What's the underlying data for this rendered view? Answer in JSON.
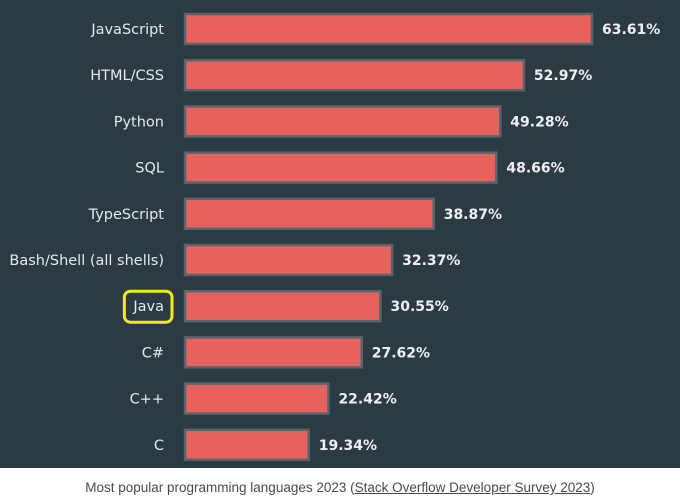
{
  "chart_data": {
    "type": "bar",
    "orientation": "horizontal",
    "categories": [
      "JavaScript",
      "HTML/CSS",
      "Python",
      "SQL",
      "TypeScript",
      "Bash/Shell (all shells)",
      "Java",
      "C#",
      "C++",
      "C"
    ],
    "values": [
      63.61,
      52.97,
      49.28,
      48.66,
      38.87,
      32.37,
      30.55,
      27.62,
      22.42,
      19.34
    ],
    "value_labels": [
      "63.61%",
      "52.97%",
      "49.28%",
      "48.66%",
      "38.87%",
      "32.37%",
      "30.55%",
      "27.62%",
      "22.42%",
      "19.34%"
    ],
    "highlighted_category": "Java",
    "xlim": [
      0,
      63.61
    ],
    "grid": false,
    "colors": {
      "background": "#2c3a42",
      "bar_fill": "#e8625d",
      "bar_stroke": "#56656d",
      "highlight": "#f2ea1b"
    }
  },
  "caption": {
    "text_before": "Most popular programming languages 2023 (",
    "link_text": "Stack Overflow Developer Survey 2023",
    "text_after": ")"
  }
}
